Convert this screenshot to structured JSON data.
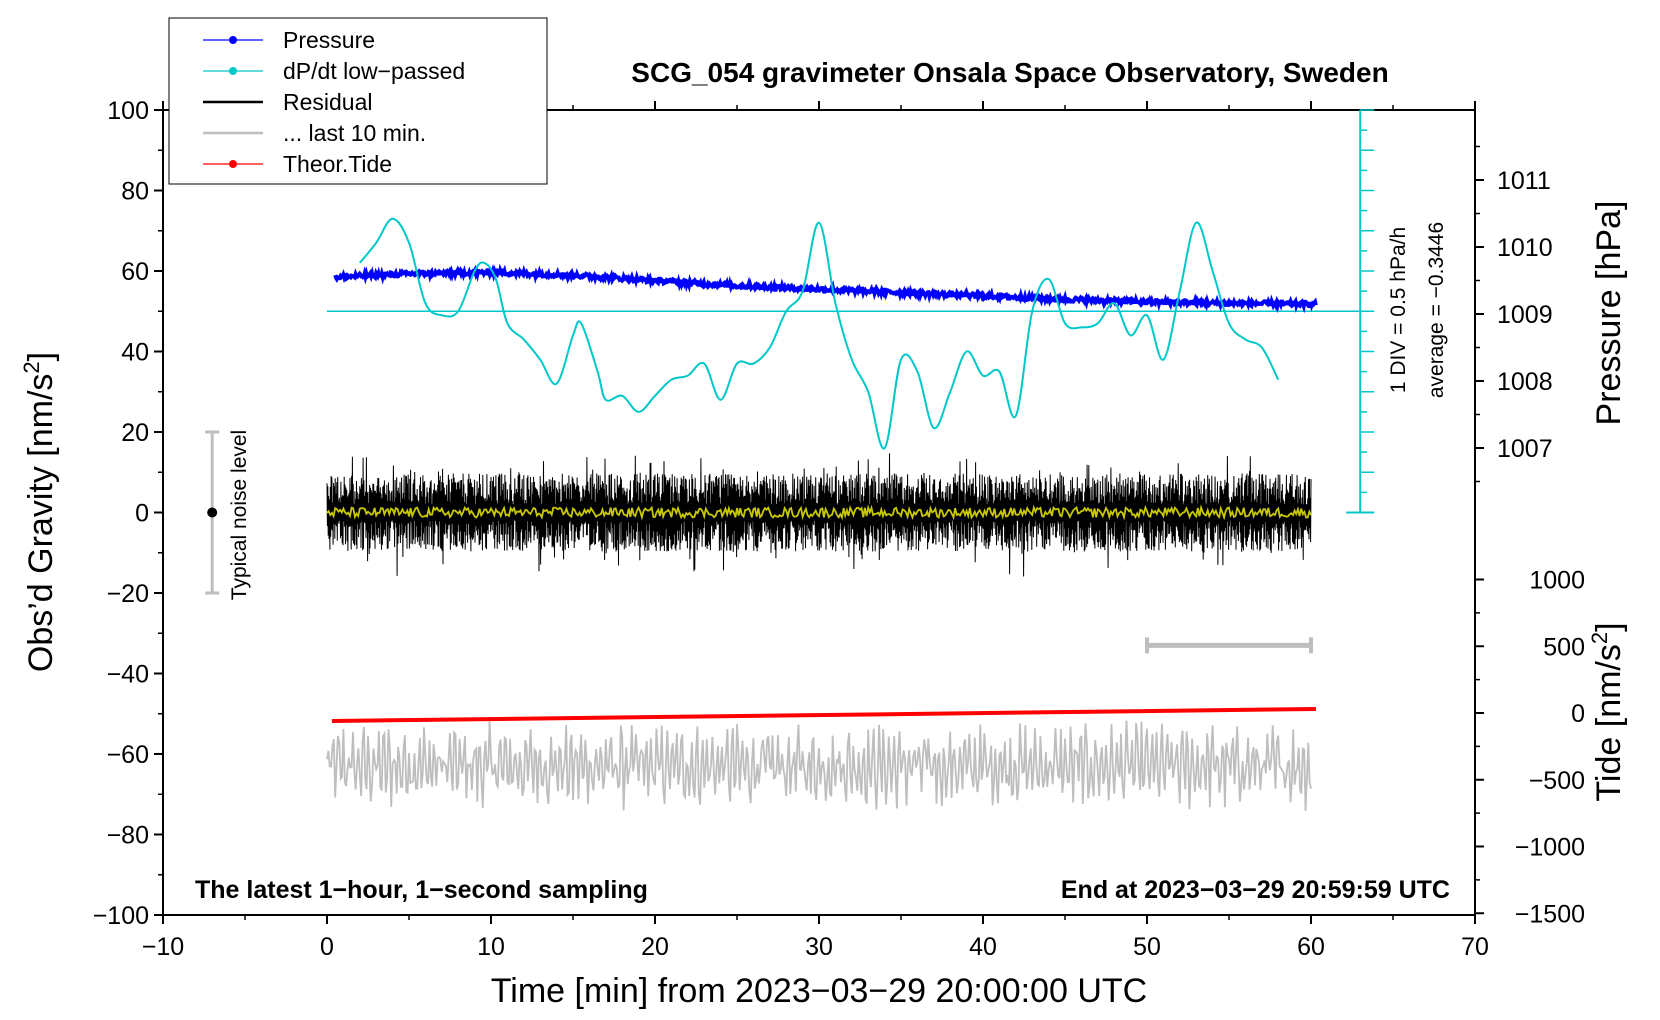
{
  "chart_data": {
    "type": "line",
    "title": "SCG_054 gravimeter Onsala Space Observatory, Sweden",
    "xlabel": "Time [min] from 2023−03−29 20:00:00 UTC",
    "ylabel_left": "Obs’d Gravity [nm/s",
    "ylabel_left_sup": "2",
    "ylabel_left_close": "]",
    "ylabel_right_pressure": "Pressure [hPa]",
    "ylabel_right_tide": "Tide [nm/s",
    "ylabel_right_tide_sup": "2",
    "ylabel_right_tide_close": "]",
    "xlim": [
      -10,
      70
    ],
    "ylim": [
      -100,
      100
    ],
    "pressure_lim": [
      1006,
      1012
    ],
    "tide_lim": [
      -1500,
      1500
    ],
    "x_ticks": [
      "−10",
      "0",
      "10",
      "20",
      "30",
      "40",
      "50",
      "60",
      "70"
    ],
    "x_tick_values": [
      -10,
      0,
      10,
      20,
      30,
      40,
      50,
      60,
      70
    ],
    "y_ticks": [
      "100",
      "80",
      "60",
      "40",
      "20",
      "0",
      "−20",
      "−40",
      "−60",
      "−80",
      "−100"
    ],
    "y_tick_values": [
      100,
      80,
      60,
      40,
      20,
      0,
      -20,
      -40,
      -60,
      -80,
      -100
    ],
    "pressure_ticks": [
      "1011",
      "1010",
      "1009",
      "1008",
      "1007"
    ],
    "pressure_tick_values": [
      1011,
      1010,
      1009,
      1008,
      1007
    ],
    "tide_ticks": [
      "1000",
      "500",
      "0",
      "−500",
      "−1000",
      "−1500"
    ],
    "tide_tick_values": [
      1000,
      500,
      0,
      -500,
      -1000,
      -1500
    ],
    "legend": {
      "position": "top-left",
      "entries": [
        {
          "label": "Pressure",
          "color": "#0000ff",
          "style": "line-dot"
        },
        {
          "label": "dP/dt low−passed",
          "color": "#00c8c8",
          "style": "line-dot"
        },
        {
          "label": "Residual",
          "color": "#000000",
          "style": "line"
        },
        {
          "label": "... last 10 min.",
          "color": "#bebebe",
          "style": "line"
        },
        {
          "label": "Theor.Tide",
          "color": "#ff0000",
          "style": "line-dot"
        }
      ]
    },
    "series": [
      {
        "name": "Pressure",
        "unit": "hPa",
        "color": "#0000ff",
        "x": [
          0.5,
          5,
          10,
          15,
          20,
          25,
          30,
          35,
          40,
          45,
          50,
          55,
          60.3
        ],
        "values": [
          1009.55,
          1009.6,
          1009.62,
          1009.58,
          1009.5,
          1009.42,
          1009.37,
          1009.32,
          1009.27,
          1009.22,
          1009.18,
          1009.16,
          1009.15
        ]
      },
      {
        "name": "dP/dt low−passed",
        "unit": "nm/s2",
        "color": "#00c8c8",
        "x": [
          2,
          3,
          4,
          5,
          6,
          7,
          8,
          9,
          9.6,
          10.3,
          11,
          12,
          13,
          14,
          15,
          15.5,
          16.5,
          17,
          18,
          19,
          20,
          21,
          22,
          23,
          24,
          25,
          26,
          27,
          28,
          29,
          30,
          31,
          32,
          33,
          34,
          35,
          36,
          37,
          38,
          39,
          40,
          41,
          42,
          43,
          44,
          45,
          46,
          47,
          48,
          49,
          50,
          51,
          52,
          53,
          54,
          55,
          56,
          57,
          58
        ],
        "values": [
          62,
          67,
          73,
          67,
          52,
          49,
          50,
          60,
          62,
          58,
          47,
          43,
          38,
          32,
          44,
          47,
          35,
          28,
          29,
          25,
          29,
          33,
          34,
          37,
          28,
          37,
          37,
          41,
          50,
          55,
          72,
          52,
          38,
          30,
          16,
          38,
          35,
          21,
          30,
          40,
          34,
          35,
          24,
          50,
          58,
          47,
          46,
          47,
          52,
          44,
          49,
          38,
          55,
          72,
          60,
          47,
          43,
          41,
          33
        ]
      },
      {
        "name": "Residual",
        "unit": "nm/s2",
        "color": "#000000",
        "x_range": [
          0,
          60
        ],
        "amplitude": 14
      },
      {
        "name": "... last 10 min.",
        "unit": "nm/s2",
        "color": "#bebebe",
        "x_range": [
          0,
          60
        ],
        "baseline": -63,
        "amplitude": 10
      },
      {
        "name": "Theor.Tide",
        "unit": "nm/s2",
        "color": "#ff0000",
        "x": [
          0.3,
          60.3
        ],
        "values": [
          -60,
          30
        ]
      }
    ],
    "dpdt_reference": {
      "level": 50,
      "scale_label": "1 DIV = 0.5 hPa/h",
      "average_label": "average = −0.3446"
    },
    "noise_level": {
      "label": "Typical noise level",
      "x": -7,
      "center": 0,
      "range": [
        -20,
        20
      ]
    },
    "period_bar": {
      "x_range": [
        50,
        60
      ],
      "y": -33
    },
    "annotations": {
      "left_bottom": "The latest 1−hour, 1−second sampling",
      "right_bottom": "End at 2023−03−29 20:59:59 UTC"
    }
  }
}
